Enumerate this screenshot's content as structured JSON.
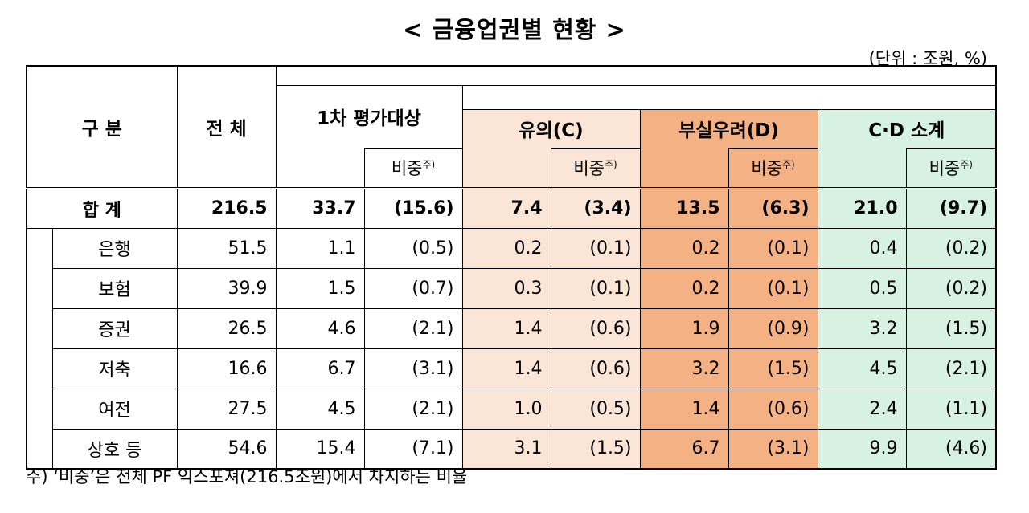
{
  "title": "< 금융업권별 현황 >",
  "unit": "(단위 : 조원, %)",
  "headers": {
    "category": "구 분",
    "total": "전 체",
    "first_eval": "1차 평가대상",
    "caution": "유의(C)",
    "risk": "부실우려(D)",
    "cd_subtotal": "C·D 소계",
    "share": "비중",
    "share_note": "주)"
  },
  "summary": {
    "label": "합 계",
    "values": [
      "216.5",
      "33.7",
      "(15.6)",
      "7.4",
      "(3.4)",
      "13.5",
      "(6.3)",
      "21.0",
      "(9.7)"
    ]
  },
  "rows": [
    {
      "label": "은행",
      "values": [
        "51.5",
        "1.1",
        "(0.5)",
        "0.2",
        "(0.1)",
        "0.2",
        "(0.1)",
        "0.4",
        "(0.2)"
      ]
    },
    {
      "label": "보험",
      "values": [
        "39.9",
        "1.5",
        "(0.7)",
        "0.3",
        "(0.1)",
        "0.2",
        "(0.1)",
        "0.5",
        "(0.2)"
      ]
    },
    {
      "label": "증권",
      "values": [
        "26.5",
        "4.6",
        "(2.1)",
        "1.4",
        "(0.6)",
        "1.9",
        "(0.9)",
        "3.2",
        "(1.5)"
      ]
    },
    {
      "label": "저축",
      "values": [
        "16.6",
        "6.7",
        "(3.1)",
        "1.4",
        "(0.6)",
        "3.2",
        "(1.5)",
        "4.5",
        "(2.1)"
      ]
    },
    {
      "label": "여전",
      "values": [
        "27.5",
        "4.5",
        "(2.1)",
        "1.0",
        "(0.5)",
        "1.4",
        "(0.6)",
        "2.4",
        "(1.1)"
      ]
    },
    {
      "label": "상호 등",
      "values": [
        "54.6",
        "15.4",
        "(7.1)",
        "3.1",
        "(1.5)",
        "6.7",
        "(3.1)",
        "9.9",
        "(4.6)"
      ]
    }
  ],
  "footnote": "주) ‘비중’은 전체 PF 익스포져(216.5조원)에서 차지하는 비율",
  "colors": {
    "caution_bg": "#fbe5d6",
    "risk_bg": "#f4b183",
    "cd_bg": "#d7f1e3"
  }
}
